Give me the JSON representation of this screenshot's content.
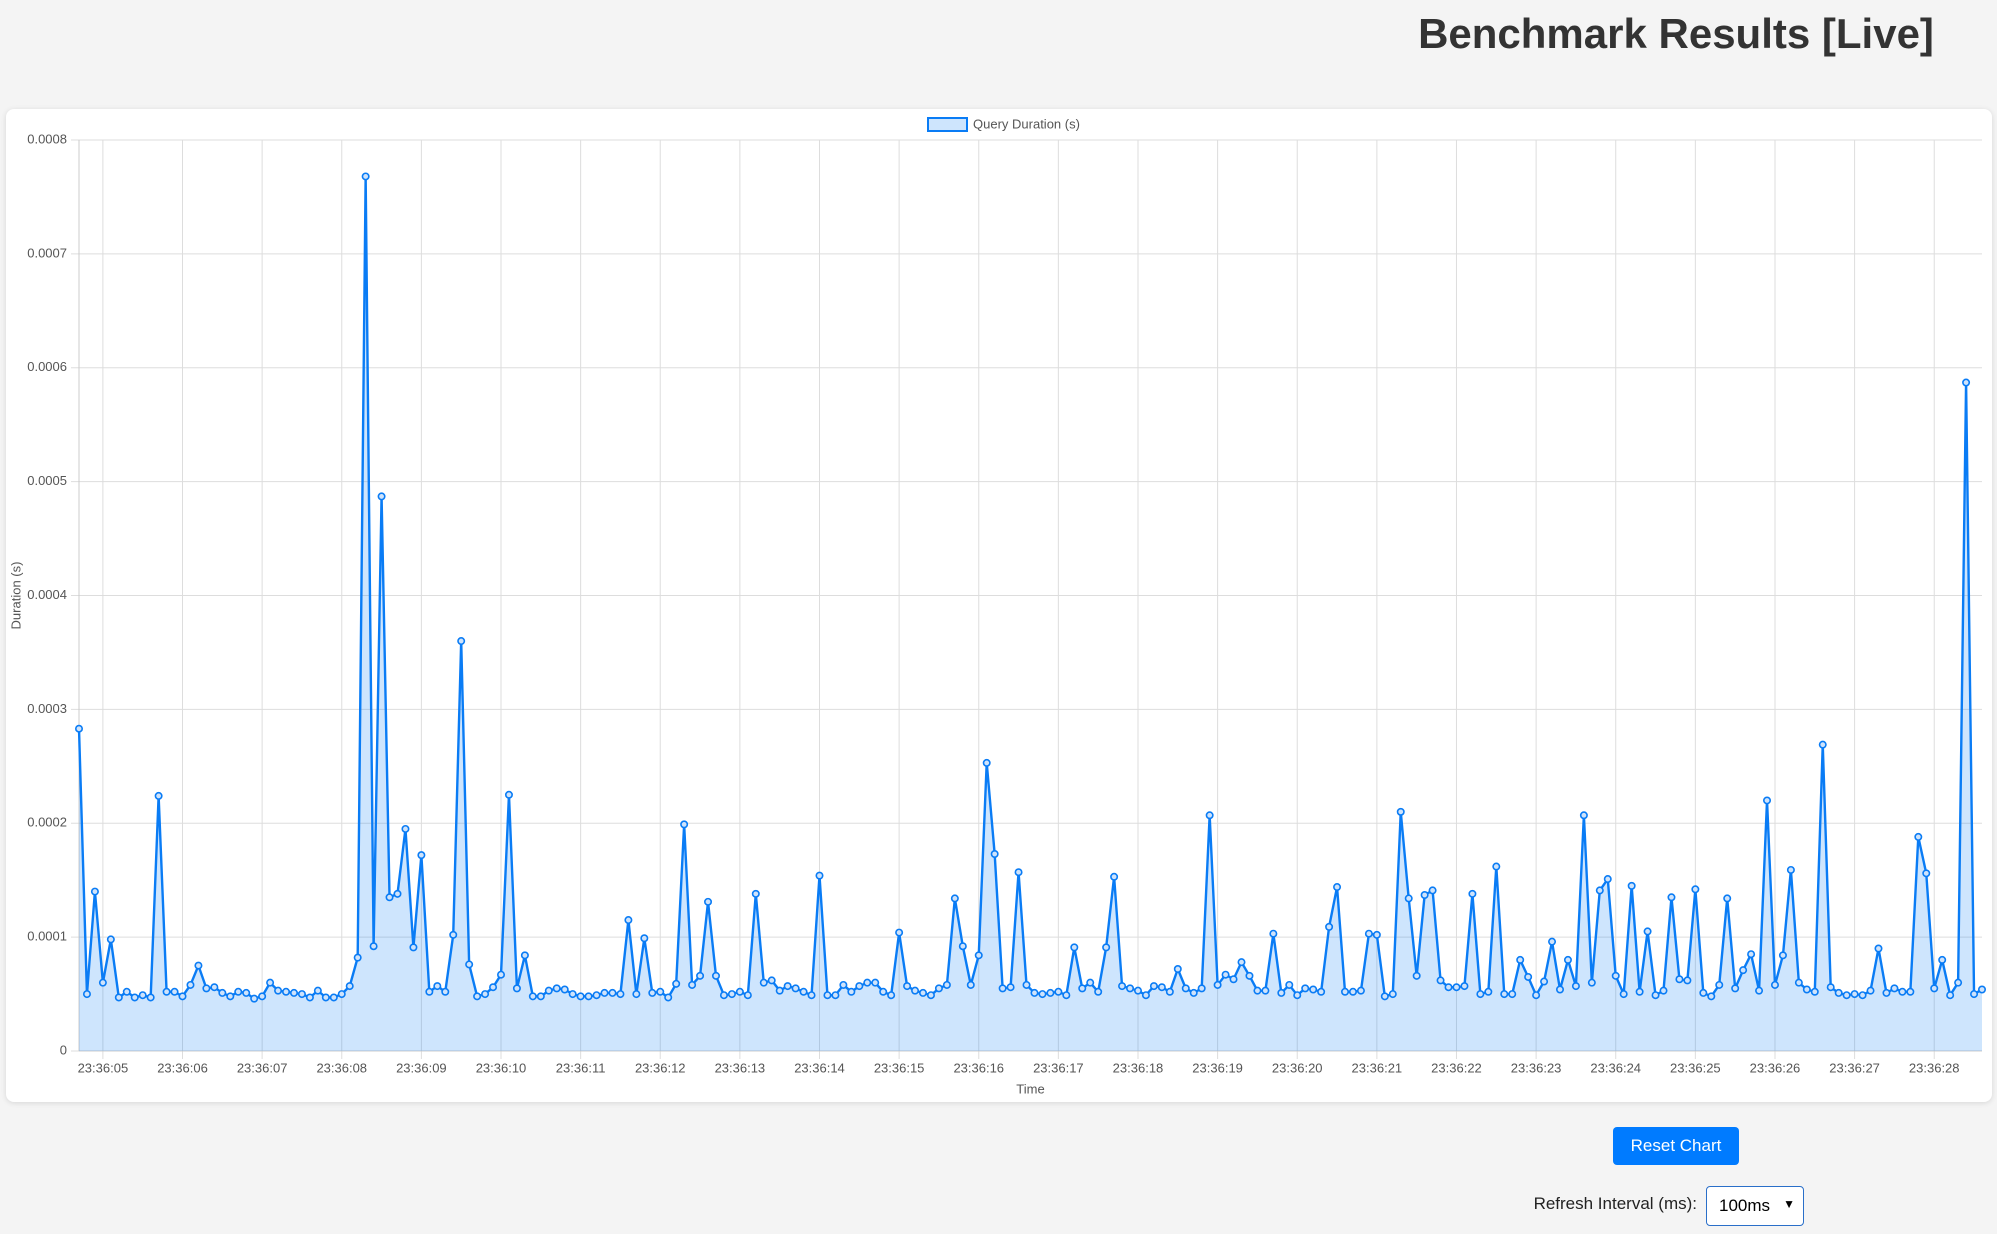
{
  "header": {
    "title": "Benchmark Results [Live]"
  },
  "controls": {
    "reset_button": "Reset Chart",
    "refresh_label": "Refresh Interval (ms):",
    "refresh_value": "100ms"
  },
  "chart_data": {
    "type": "line",
    "x_label": "Time",
    "y_label": "Duration (s)",
    "legend": "top",
    "grid": true,
    "ylim": [
      0,
      0.0008
    ],
    "yticks": [
      0,
      0.0001,
      0.0002,
      0.0003,
      0.0004,
      0.0005,
      0.0006,
      0.0007,
      0.0008
    ],
    "categories": [
      null,
      null,
      null,
      "23:36:05",
      null,
      null,
      null,
      null,
      null,
      null,
      null,
      null,
      null,
      "23:36:06",
      null,
      null,
      null,
      null,
      null,
      null,
      null,
      null,
      null,
      "23:36:07",
      null,
      null,
      null,
      null,
      null,
      null,
      null,
      null,
      null,
      "23:36:08",
      null,
      null,
      null,
      null,
      null,
      null,
      null,
      null,
      null,
      "23:36:09",
      null,
      null,
      null,
      null,
      null,
      null,
      null,
      null,
      null,
      "23:36:10",
      null,
      null,
      null,
      null,
      null,
      null,
      null,
      null,
      null,
      "23:36:11",
      null,
      null,
      null,
      null,
      null,
      null,
      null,
      null,
      null,
      "23:36:12",
      null,
      null,
      null,
      null,
      null,
      null,
      null,
      null,
      null,
      "23:36:13",
      null,
      null,
      null,
      null,
      null,
      null,
      null,
      null,
      null,
      "23:36:14",
      null,
      null,
      null,
      null,
      null,
      null,
      null,
      null,
      null,
      "23:36:15",
      null,
      null,
      null,
      null,
      null,
      null,
      null,
      null,
      null,
      "23:36:16",
      null,
      null,
      null,
      null,
      null,
      null,
      null,
      null,
      null,
      "23:36:17",
      null,
      null,
      null,
      null,
      null,
      null,
      null,
      null,
      null,
      "23:36:18",
      null,
      null,
      null,
      null,
      null,
      null,
      null,
      null,
      null,
      "23:36:19",
      null,
      null,
      null,
      null,
      null,
      null,
      null,
      null,
      null,
      "23:36:20",
      null,
      null,
      null,
      null,
      null,
      null,
      null,
      null,
      null,
      "23:36:21",
      null,
      null,
      null,
      null,
      null,
      null,
      null,
      null,
      null,
      "23:36:22",
      null,
      null,
      null,
      null,
      null,
      null,
      null,
      null,
      null,
      "23:36:23",
      null,
      null,
      null,
      null,
      null,
      null,
      null,
      null,
      null,
      "23:36:24",
      null,
      null,
      null,
      null,
      null,
      null,
      null,
      null,
      null,
      "23:36:25",
      null,
      null,
      null,
      null,
      null,
      null,
      null,
      null,
      null,
      "23:36:26",
      null,
      null,
      null,
      null,
      null,
      null,
      null,
      null,
      null,
      "23:36:27",
      null,
      null,
      null,
      null,
      null,
      null,
      null,
      null,
      null,
      "23:36:28",
      null,
      null,
      null,
      null,
      null,
      null
    ],
    "series": [
      {
        "name": "Query Duration (s)",
        "color": "#0a7cf5",
        "values": [
          0.000283,
          5e-05,
          0.00014,
          6e-05,
          9.8e-05,
          4.7e-05,
          5.2e-05,
          4.7e-05,
          4.9e-05,
          4.7e-05,
          0.000224,
          5.2e-05,
          5.2e-05,
          4.8e-05,
          5.8e-05,
          7.5e-05,
          5.5e-05,
          5.6e-05,
          5.1e-05,
          4.8e-05,
          5.2e-05,
          5.1e-05,
          4.6e-05,
          4.8e-05,
          6e-05,
          5.3e-05,
          5.2e-05,
          5.1e-05,
          5e-05,
          4.7e-05,
          5.3e-05,
          4.7e-05,
          4.7e-05,
          5e-05,
          5.7e-05,
          8.2e-05,
          0.000768,
          9.2e-05,
          0.000487,
          0.000135,
          0.000138,
          0.000195,
          9.1e-05,
          0.000172,
          5.2e-05,
          5.7e-05,
          5.2e-05,
          0.000102,
          0.00036,
          7.6e-05,
          4.8e-05,
          5e-05,
          5.6e-05,
          6.7e-05,
          0.000225,
          5.5e-05,
          8.4e-05,
          4.8e-05,
          4.8e-05,
          5.3e-05,
          5.5e-05,
          5.4e-05,
          5e-05,
          4.8e-05,
          4.8e-05,
          4.9e-05,
          5.1e-05,
          5.1e-05,
          5e-05,
          0.000115,
          5e-05,
          9.9e-05,
          5.1e-05,
          5.2e-05,
          4.7e-05,
          5.9e-05,
          0.000199,
          5.8e-05,
          6.6e-05,
          0.000131,
          6.6e-05,
          4.9e-05,
          5e-05,
          5.2e-05,
          4.9e-05,
          0.000138,
          6e-05,
          6.2e-05,
          5.3e-05,
          5.7e-05,
          5.5e-05,
          5.2e-05,
          4.9e-05,
          0.000154,
          4.9e-05,
          4.9e-05,
          5.8e-05,
          5.2e-05,
          5.7e-05,
          6e-05,
          6e-05,
          5.2e-05,
          4.9e-05,
          0.000104,
          5.7e-05,
          5.3e-05,
          5.1e-05,
          4.9e-05,
          5.5e-05,
          5.8e-05,
          0.000134,
          9.2e-05,
          5.8e-05,
          8.4e-05,
          0.000253,
          0.000173,
          5.5e-05,
          5.6e-05,
          0.000157,
          5.8e-05,
          5.1e-05,
          5e-05,
          5.1e-05,
          5.2e-05,
          4.9e-05,
          9.1e-05,
          5.5e-05,
          6e-05,
          5.2e-05,
          9.1e-05,
          0.000153,
          5.7e-05,
          5.5e-05,
          5.3e-05,
          4.9e-05,
          5.7e-05,
          5.6e-05,
          5.2e-05,
          7.2e-05,
          5.5e-05,
          5.1e-05,
          5.5e-05,
          0.000207,
          5.8e-05,
          6.7e-05,
          6.3e-05,
          7.8e-05,
          6.6e-05,
          5.3e-05,
          5.3e-05,
          0.000103,
          5.1e-05,
          5.8e-05,
          4.9e-05,
          5.5e-05,
          5.4e-05,
          5.2e-05,
          0.000109,
          0.000144,
          5.2e-05,
          5.2e-05,
          5.3e-05,
          0.000103,
          0.000102,
          4.8e-05,
          5e-05,
          0.00021,
          0.000134,
          6.6e-05,
          0.000137,
          0.000141,
          6.2e-05,
          5.6e-05,
          5.6e-05,
          5.7e-05,
          0.000138,
          5e-05,
          5.2e-05,
          0.000162,
          5e-05,
          5e-05,
          8e-05,
          6.5e-05,
          4.9e-05,
          6.1e-05,
          9.6e-05,
          5.4e-05,
          8e-05,
          5.7e-05,
          0.000207,
          6e-05,
          0.000141,
          0.000151,
          6.6e-05,
          5e-05,
          0.000145,
          5.2e-05,
          0.000105,
          4.9e-05,
          5.3e-05,
          0.000135,
          6.3e-05,
          6.2e-05,
          0.000142,
          5.1e-05,
          4.8e-05,
          5.8e-05,
          0.000134,
          5.5e-05,
          7.1e-05,
          8.5e-05,
          5.3e-05,
          0.00022,
          5.8e-05,
          8.4e-05,
          0.000159,
          6e-05,
          5.4e-05,
          5.2e-05,
          0.000269,
          5.6e-05,
          5.1e-05,
          4.9e-05,
          5e-05,
          4.9e-05,
          5.3e-05,
          9e-05,
          5.1e-05,
          5.5e-05,
          5.2e-05,
          5.2e-05,
          0.000188,
          0.000156,
          5.5e-05,
          8e-05,
          4.9e-05,
          6e-05,
          0.000587,
          5e-05,
          5.4e-05
        ]
      }
    ]
  }
}
